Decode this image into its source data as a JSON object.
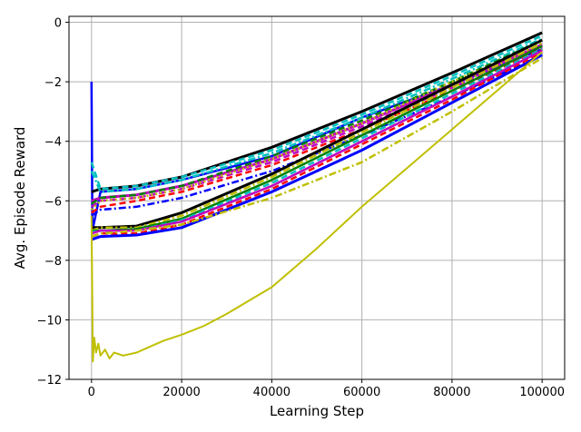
{
  "chart_data": {
    "type": "line",
    "title": "",
    "xlabel": "Learning Step",
    "ylabel": "Avg. Episode Reward",
    "xlim": [
      -5000,
      105000
    ],
    "ylim": [
      -12,
      0.2
    ],
    "xticks": [
      0,
      20000,
      40000,
      60000,
      80000,
      100000
    ],
    "xtick_labels": [
      "0",
      "20000",
      "40000",
      "60000",
      "80000",
      "100000"
    ],
    "yticks": [
      -12,
      -10,
      -8,
      -6,
      -4,
      -2,
      0
    ],
    "ytick_labels": [
      "−12",
      "−10",
      "−8",
      "−6",
      "−4",
      "−2",
      "0"
    ],
    "grid": true,
    "legend": "none",
    "series": [
      {
        "color": "#0000ff",
        "style": "solid",
        "width": 2.5,
        "x": [
          0,
          200,
          2000,
          10000,
          20000,
          40000,
          60000,
          80000,
          100000
        ],
        "y": [
          -2.0,
          -7.0,
          -5.7,
          -5.6,
          -5.3,
          -4.5,
          -3.2,
          -2.1,
          -0.9
        ]
      },
      {
        "color": "#000000",
        "style": "solid",
        "width": 3,
        "x": [
          0,
          2000,
          10000,
          20000,
          40000,
          60000,
          80000,
          100000
        ],
        "y": [
          -5.7,
          -5.6,
          -5.5,
          -5.2,
          -4.2,
          -3.0,
          -1.7,
          -0.35
        ]
      },
      {
        "color": "#00bfbf",
        "style": "dashed",
        "width": 2.5,
        "x": [
          0,
          2000,
          10000,
          20000,
          40000,
          60000,
          80000,
          100000
        ],
        "y": [
          -4.7,
          -5.6,
          -5.5,
          -5.2,
          -4.3,
          -3.1,
          -1.8,
          -0.45
        ]
      },
      {
        "color": "#00bfbf",
        "style": "dashdot",
        "width": 2.5,
        "x": [
          0,
          2000,
          10000,
          20000,
          40000,
          60000,
          80000,
          100000
        ],
        "y": [
          -5.0,
          -5.7,
          -5.6,
          -5.3,
          -4.4,
          -3.2,
          -1.9,
          -0.55
        ]
      },
      {
        "color": "#bf00bf",
        "style": "solid",
        "width": 3,
        "x": [
          0,
          2000,
          10000,
          20000,
          40000,
          60000,
          80000,
          100000
        ],
        "y": [
          -6.0,
          -5.9,
          -5.8,
          -5.5,
          -4.6,
          -3.4,
          -2.1,
          -0.75
        ]
      },
      {
        "color": "#bf00bf",
        "style": "dashed",
        "width": 2.5,
        "x": [
          0,
          2000,
          10000,
          20000,
          40000,
          60000,
          80000,
          100000
        ],
        "y": [
          -6.2,
          -6.0,
          -5.9,
          -5.6,
          -4.7,
          -3.5,
          -2.2,
          -0.85
        ]
      },
      {
        "color": "#008000",
        "style": "dashed",
        "width": 2.5,
        "x": [
          0,
          2000,
          10000,
          20000,
          40000,
          60000,
          80000,
          100000
        ],
        "y": [
          -6.1,
          -5.9,
          -5.8,
          -5.5,
          -4.5,
          -3.3,
          -2.0,
          -0.6
        ]
      },
      {
        "color": "#bfbf00",
        "style": "dotted",
        "width": 2.5,
        "x": [
          0,
          2000,
          10000,
          20000,
          40000,
          60000,
          80000,
          100000
        ],
        "y": [
          -6.3,
          -6.0,
          -5.9,
          -5.6,
          -4.6,
          -3.4,
          -2.0,
          -0.7
        ]
      },
      {
        "color": "#ff0000",
        "style": "dashed",
        "width": 2.5,
        "x": [
          0,
          2000,
          10000,
          20000,
          40000,
          60000,
          80000,
          100000
        ],
        "y": [
          -6.4,
          -6.2,
          -6.0,
          -5.7,
          -4.8,
          -3.6,
          -2.3,
          -0.9
        ]
      },
      {
        "color": "#0000ff",
        "style": "dashdot",
        "width": 2.5,
        "x": [
          0,
          2000,
          10000,
          20000,
          40000,
          60000,
          80000,
          100000
        ],
        "y": [
          -6.5,
          -6.3,
          -6.2,
          -5.9,
          -5.0,
          -3.8,
          -2.5,
          -1.1
        ]
      },
      {
        "color": "#000000",
        "style": "solid",
        "width": 3,
        "x": [
          0,
          2000,
          10000,
          20000,
          40000,
          60000,
          80000,
          100000
        ],
        "y": [
          -6.9,
          -6.9,
          -6.85,
          -6.4,
          -5.1,
          -3.6,
          -2.1,
          -0.6
        ]
      },
      {
        "color": "#bfbf00",
        "style": "dashdot",
        "width": 2.5,
        "x": [
          0,
          2000,
          10000,
          20000,
          40000,
          60000,
          80000,
          100000
        ],
        "y": [
          -7.0,
          -6.9,
          -6.9,
          -6.5,
          -5.2,
          -3.7,
          -2.2,
          -0.7
        ]
      },
      {
        "color": "#008000",
        "style": "solid",
        "width": 2.5,
        "x": [
          0,
          2000,
          10000,
          20000,
          40000,
          60000,
          80000,
          100000
        ],
        "y": [
          -7.0,
          -7.0,
          -6.95,
          -6.6,
          -5.3,
          -3.8,
          -2.3,
          -0.8
        ]
      },
      {
        "color": "#00bfbf",
        "style": "dashed",
        "width": 2.5,
        "x": [
          0,
          2000,
          10000,
          20000,
          40000,
          60000,
          80000,
          100000
        ],
        "y": [
          -7.05,
          -7.0,
          -7.0,
          -6.65,
          -5.4,
          -3.9,
          -2.4,
          -0.9
        ]
      },
      {
        "color": "#ff0000",
        "style": "dashed",
        "width": 2.5,
        "x": [
          0,
          2000,
          10000,
          20000,
          40000,
          60000,
          80000,
          100000
        ],
        "y": [
          -7.2,
          -7.1,
          -7.1,
          -6.8,
          -5.6,
          -4.1,
          -2.6,
          -1.0
        ]
      },
      {
        "color": "#0000ff",
        "style": "solid",
        "width": 3,
        "x": [
          0,
          2000,
          10000,
          20000,
          40000,
          60000,
          80000,
          100000
        ],
        "y": [
          -7.3,
          -7.2,
          -7.15,
          -6.9,
          -5.7,
          -4.3,
          -2.7,
          -1.1
        ]
      },
      {
        "color": "#bf00bf",
        "style": "solid",
        "width": 2.5,
        "x": [
          0,
          2000,
          10000,
          20000,
          40000,
          60000,
          80000,
          100000
        ],
        "y": [
          -7.1,
          -7.0,
          -7.0,
          -6.7,
          -5.5,
          -4.0,
          -2.5,
          -0.95
        ]
      },
      {
        "color": "#bfbf00",
        "style": "dashdot",
        "width": 2.5,
        "x": [
          0,
          2000,
          10000,
          20000,
          40000,
          60000,
          80000,
          100000
        ],
        "y": [
          -7.2,
          -7.1,
          -7.0,
          -6.8,
          -5.9,
          -4.7,
          -3.0,
          -1.2
        ]
      },
      {
        "color": "#bfbf00",
        "style": "solid",
        "width": 2,
        "x": [
          0,
          300,
          600,
          1000,
          1500,
          2000,
          3000,
          4000,
          5000,
          7000,
          10000,
          13000,
          16000,
          20000,
          25000,
          30000,
          40000,
          50000,
          60000,
          70000,
          80000,
          90000,
          100000
        ],
        "y": [
          -6.5,
          -11.4,
          -10.6,
          -11.1,
          -10.8,
          -11.2,
          -11.0,
          -11.3,
          -11.1,
          -11.2,
          -11.1,
          -10.9,
          -10.7,
          -10.5,
          -10.2,
          -9.8,
          -8.9,
          -7.6,
          -6.2,
          -4.9,
          -3.6,
          -2.3,
          -1.0
        ]
      }
    ]
  }
}
